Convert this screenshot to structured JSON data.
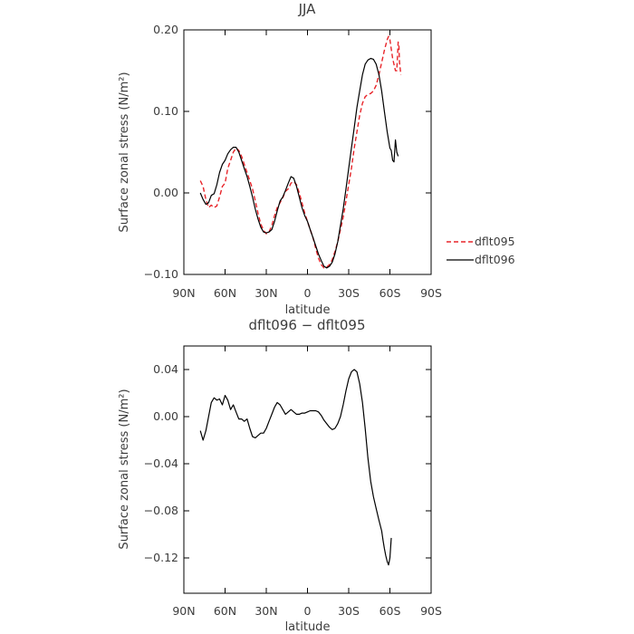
{
  "chart_data": [
    {
      "type": "line",
      "title": "JJA",
      "xlabel": "latitude",
      "ylabel": "Surface zonal stress (N/m²)",
      "xlim": [
        90,
        -90
      ],
      "ylim": [
        -0.1,
        0.2
      ],
      "x_ticks": [
        90,
        60,
        30,
        0,
        -30,
        -60,
        -90
      ],
      "x_tick_labels": [
        "90N",
        "60N",
        "30N",
        "0",
        "30S",
        "60S",
        "90S"
      ],
      "y_ticks": [
        -0.1,
        0.0,
        0.1,
        0.2
      ],
      "y_tick_labels": [
        "−0.10",
        "0.00",
        "0.10",
        "0.20"
      ],
      "legend": {
        "position": "right",
        "entries": [
          "dflt095",
          "dflt096"
        ]
      },
      "series": [
        {
          "name": "dflt095",
          "color": "#e8252a",
          "style": "dashed",
          "points": [
            [
              78,
              0.015
            ],
            [
              76,
              0.008
            ],
            [
              74,
              -0.008
            ],
            [
              72,
              -0.018
            ],
            [
              70,
              -0.015
            ],
            [
              68,
              -0.018
            ],
            [
              66,
              -0.016
            ],
            [
              64,
              -0.005
            ],
            [
              62,
              0.008
            ],
            [
              60,
              0.012
            ],
            [
              58,
              0.03
            ],
            [
              56,
              0.04
            ],
            [
              54,
              0.05
            ],
            [
              52,
              0.055
            ],
            [
              50,
              0.052
            ],
            [
              48,
              0.045
            ],
            [
              46,
              0.035
            ],
            [
              44,
              0.025
            ],
            [
              42,
              0.015
            ],
            [
              40,
              0.005
            ],
            [
              38,
              -0.01
            ],
            [
              36,
              -0.025
            ],
            [
              34,
              -0.038
            ],
            [
              32,
              -0.046
            ],
            [
              30,
              -0.05
            ],
            [
              28,
              -0.048
            ],
            [
              26,
              -0.04
            ],
            [
              24,
              -0.028
            ],
            [
              22,
              -0.018
            ],
            [
              20,
              -0.012
            ],
            [
              18,
              -0.006
            ],
            [
              16,
              0.002
            ],
            [
              14,
              0.005
            ],
            [
              12,
              0.012
            ],
            [
              10,
              0.014
            ],
            [
              8,
              0.01
            ],
            [
              6,
              0.0
            ],
            [
              4,
              -0.012
            ],
            [
              2,
              -0.025
            ],
            [
              0,
              -0.035
            ],
            [
              -2,
              -0.045
            ],
            [
              -4,
              -0.055
            ],
            [
              -6,
              -0.068
            ],
            [
              -8,
              -0.08
            ],
            [
              -10,
              -0.088
            ],
            [
              -12,
              -0.092
            ],
            [
              -14,
              -0.091
            ],
            [
              -16,
              -0.088
            ],
            [
              -18,
              -0.082
            ],
            [
              -20,
              -0.072
            ],
            [
              -22,
              -0.06
            ],
            [
              -24,
              -0.045
            ],
            [
              -26,
              -0.03
            ],
            [
              -28,
              -0.01
            ],
            [
              -30,
              0.01
            ],
            [
              -32,
              0.03
            ],
            [
              -34,
              0.055
            ],
            [
              -36,
              0.075
            ],
            [
              -38,
              0.095
            ],
            [
              -40,
              0.11
            ],
            [
              -42,
              0.118
            ],
            [
              -44,
              0.121
            ],
            [
              -46,
              0.122
            ],
            [
              -48,
              0.125
            ],
            [
              -50,
              0.132
            ],
            [
              -52,
              0.145
            ],
            [
              -54,
              0.16
            ],
            [
              -56,
              0.175
            ],
            [
              -58,
              0.188
            ],
            [
              -59,
              0.192
            ],
            [
              -60,
              0.188
            ],
            [
              -62,
              0.165
            ],
            [
              -64,
              0.15
            ],
            [
              -65,
              0.15
            ],
            [
              -66,
              0.185
            ],
            [
              -66.5,
              0.182
            ],
            [
              -67,
              0.16
            ],
            [
              -68,
              0.145
            ]
          ]
        },
        {
          "name": "dflt096",
          "color": "#000000",
          "style": "solid",
          "points": [
            [
              78,
              0.0
            ],
            [
              76,
              -0.008
            ],
            [
              74,
              -0.014
            ],
            [
              72,
              -0.012
            ],
            [
              70,
              -0.003
            ],
            [
              68,
              -0.001
            ],
            [
              66,
              0.01
            ],
            [
              64,
              0.025
            ],
            [
              62,
              0.035
            ],
            [
              60,
              0.04
            ],
            [
              58,
              0.048
            ],
            [
              56,
              0.053
            ],
            [
              54,
              0.056
            ],
            [
              52,
              0.056
            ],
            [
              50,
              0.05
            ],
            [
              48,
              0.04
            ],
            [
              46,
              0.03
            ],
            [
              44,
              0.02
            ],
            [
              42,
              0.008
            ],
            [
              40,
              -0.005
            ],
            [
              38,
              -0.02
            ],
            [
              36,
              -0.032
            ],
            [
              34,
              -0.042
            ],
            [
              32,
              -0.048
            ],
            [
              30,
              -0.049
            ],
            [
              28,
              -0.048
            ],
            [
              26,
              -0.045
            ],
            [
              24,
              -0.035
            ],
            [
              22,
              -0.022
            ],
            [
              20,
              -0.01
            ],
            [
              18,
              -0.005
            ],
            [
              16,
              0.003
            ],
            [
              14,
              0.012
            ],
            [
              12,
              0.02
            ],
            [
              10,
              0.018
            ],
            [
              8,
              0.008
            ],
            [
              6,
              -0.005
            ],
            [
              4,
              -0.018
            ],
            [
              2,
              -0.028
            ],
            [
              0,
              -0.035
            ],
            [
              -2,
              -0.045
            ],
            [
              -4,
              -0.055
            ],
            [
              -6,
              -0.065
            ],
            [
              -8,
              -0.075
            ],
            [
              -10,
              -0.083
            ],
            [
              -12,
              -0.09
            ],
            [
              -14,
              -0.092
            ],
            [
              -16,
              -0.09
            ],
            [
              -18,
              -0.085
            ],
            [
              -20,
              -0.075
            ],
            [
              -22,
              -0.06
            ],
            [
              -24,
              -0.04
            ],
            [
              -26,
              -0.02
            ],
            [
              -28,
              0.005
            ],
            [
              -30,
              0.03
            ],
            [
              -32,
              0.055
            ],
            [
              -34,
              0.08
            ],
            [
              -36,
              0.105
            ],
            [
              -38,
              0.125
            ],
            [
              -40,
              0.145
            ],
            [
              -42,
              0.158
            ],
            [
              -44,
              0.163
            ],
            [
              -46,
              0.165
            ],
            [
              -48,
              0.164
            ],
            [
              -50,
              0.158
            ],
            [
              -52,
              0.145
            ],
            [
              -54,
              0.125
            ],
            [
              -56,
              0.1
            ],
            [
              -58,
              0.075
            ],
            [
              -60,
              0.055
            ],
            [
              -61,
              0.052
            ],
            [
              -62,
              0.04
            ],
            [
              -63,
              0.038
            ],
            [
              -64,
              0.065
            ],
            [
              -65,
              0.05
            ],
            [
              -66,
              0.045
            ]
          ]
        }
      ]
    },
    {
      "type": "line",
      "title": "dflt096 − dflt095",
      "xlabel": "latitude",
      "ylabel": "Surface zonal stress (N/m²)",
      "xlim": [
        90,
        -90
      ],
      "ylim": [
        -0.15,
        0.06
      ],
      "x_ticks": [
        90,
        60,
        30,
        0,
        -30,
        -60,
        -90
      ],
      "x_tick_labels": [
        "90N",
        "60N",
        "30N",
        "0",
        "30S",
        "60S",
        "90S"
      ],
      "y_ticks": [
        -0.12,
        -0.08,
        -0.04,
        0.0,
        0.04
      ],
      "y_tick_labels": [
        "−0.12",
        "−0.08",
        "−0.04",
        "0.00",
        "0.04"
      ],
      "series": [
        {
          "color": "#000000",
          "style": "solid",
          "points": [
            [
              78,
              -0.012
            ],
            [
              76,
              -0.02
            ],
            [
              74,
              -0.012
            ],
            [
              72,
              0.0
            ],
            [
              70,
              0.012
            ],
            [
              68,
              0.016
            ],
            [
              66,
              0.014
            ],
            [
              64,
              0.015
            ],
            [
              62,
              0.01
            ],
            [
              60,
              0.018
            ],
            [
              58,
              0.014
            ],
            [
              56,
              0.006
            ],
            [
              54,
              0.01
            ],
            [
              52,
              0.004
            ],
            [
              50,
              -0.002
            ],
            [
              48,
              -0.002
            ],
            [
              46,
              -0.004
            ],
            [
              44,
              -0.002
            ],
            [
              42,
              -0.01
            ],
            [
              40,
              -0.017
            ],
            [
              38,
              -0.018
            ],
            [
              36,
              -0.016
            ],
            [
              34,
              -0.014
            ],
            [
              32,
              -0.014
            ],
            [
              30,
              -0.01
            ],
            [
              28,
              -0.004
            ],
            [
              26,
              0.002
            ],
            [
              24,
              0.008
            ],
            [
              22,
              0.012
            ],
            [
              20,
              0.01
            ],
            [
              18,
              0.006
            ],
            [
              16,
              0.002
            ],
            [
              14,
              0.004
            ],
            [
              12,
              0.006
            ],
            [
              10,
              0.004
            ],
            [
              8,
              0.002
            ],
            [
              6,
              0.002
            ],
            [
              4,
              0.003
            ],
            [
              2,
              0.003
            ],
            [
              0,
              0.004
            ],
            [
              -2,
              0.005
            ],
            [
              -4,
              0.005
            ],
            [
              -6,
              0.005
            ],
            [
              -8,
              0.004
            ],
            [
              -10,
              0.001
            ],
            [
              -12,
              -0.003
            ],
            [
              -14,
              -0.006
            ],
            [
              -16,
              -0.009
            ],
            [
              -18,
              -0.011
            ],
            [
              -20,
              -0.01
            ],
            [
              -22,
              -0.006
            ],
            [
              -24,
              0.0
            ],
            [
              -26,
              0.01
            ],
            [
              -28,
              0.022
            ],
            [
              -30,
              0.032
            ],
            [
              -32,
              0.038
            ],
            [
              -34,
              0.04
            ],
            [
              -36,
              0.038
            ],
            [
              -38,
              0.028
            ],
            [
              -40,
              0.012
            ],
            [
              -42,
              -0.01
            ],
            [
              -44,
              -0.035
            ],
            [
              -46,
              -0.055
            ],
            [
              -48,
              -0.068
            ],
            [
              -50,
              -0.078
            ],
            [
              -52,
              -0.088
            ],
            [
              -54,
              -0.097
            ],
            [
              -55,
              -0.105
            ],
            [
              -56,
              -0.112
            ],
            [
              -57,
              -0.118
            ],
            [
              -58,
              -0.123
            ],
            [
              -59,
              -0.126
            ],
            [
              -60,
              -0.12
            ],
            [
              -61,
              -0.103
            ]
          ]
        }
      ]
    }
  ]
}
